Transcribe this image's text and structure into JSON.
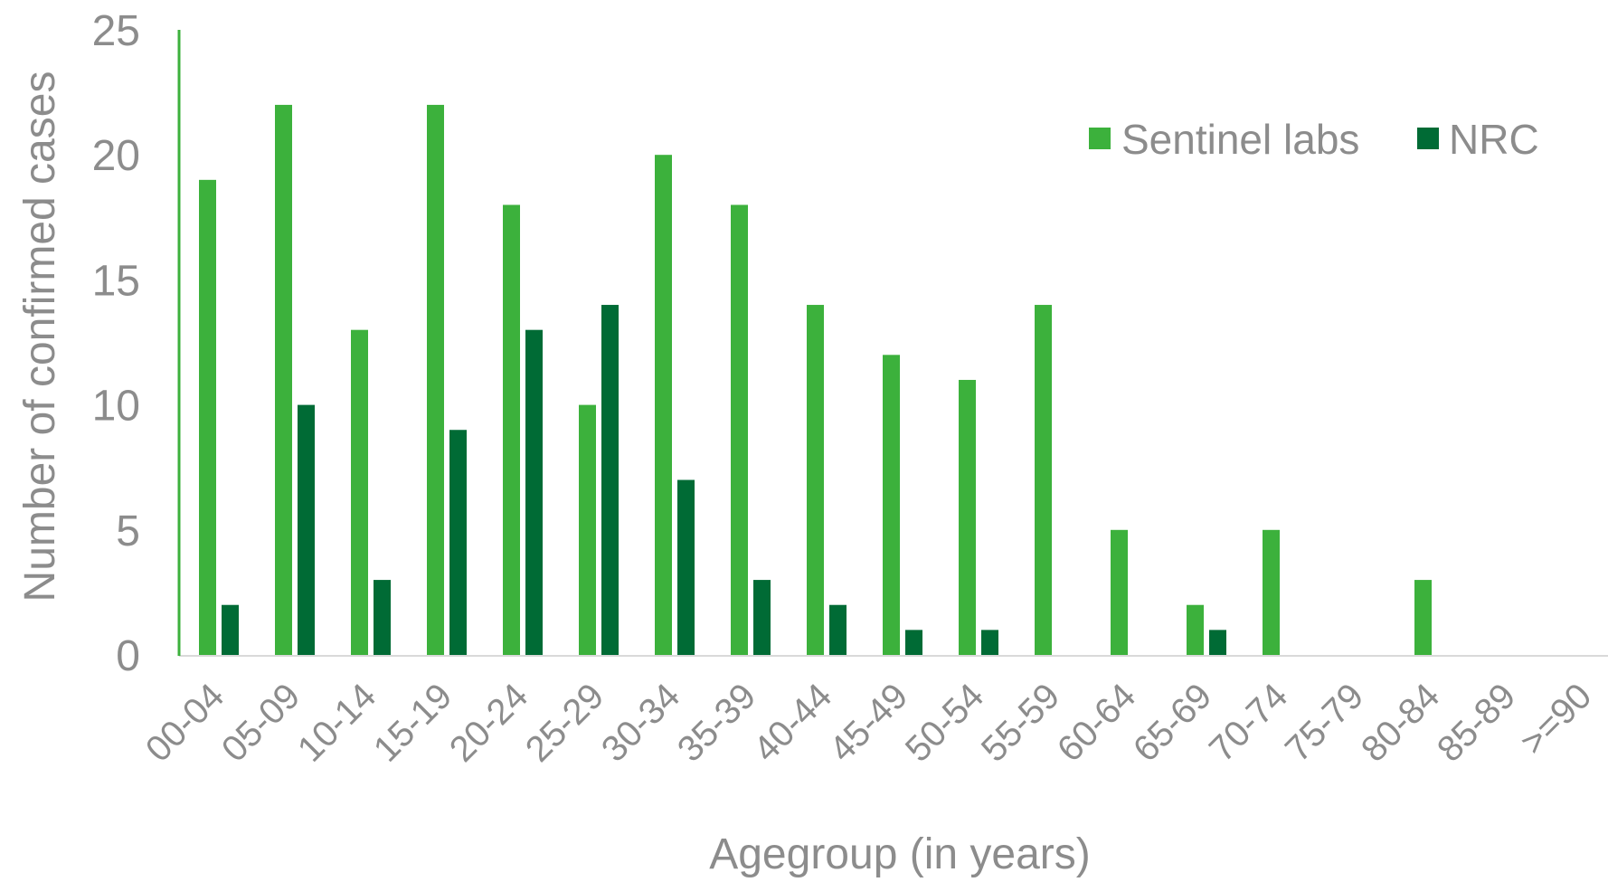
{
  "chart_data": {
    "type": "bar",
    "title": "",
    "xlabel": "Agegroup (in years)",
    "ylabel": "Number of confirmed cases",
    "ylim": [
      0,
      25
    ],
    "yticks": [
      "0",
      "5",
      "10",
      "15",
      "20",
      "25"
    ],
    "grid": false,
    "legend_position": "top-right",
    "categories": [
      "00-04",
      "05-09",
      "10-14",
      "15-19",
      "20-24",
      "25-29",
      "30-34",
      "35-39",
      "40-44",
      "45-49",
      "50-54",
      "55-59",
      "60-64",
      "65-69",
      "70-74",
      "75-79",
      "80-84",
      "85-89",
      ">=90"
    ],
    "series": [
      {
        "name": "Sentinel labs",
        "color": "#3cb13c",
        "values": [
          19,
          22,
          13,
          22,
          18,
          10,
          20,
          18,
          14,
          12,
          11,
          14,
          5,
          2,
          5,
          0,
          3,
          0,
          0
        ]
      },
      {
        "name": "NRC",
        "color": "#006b35",
        "values": [
          2,
          10,
          3,
          9,
          13,
          14,
          7,
          3,
          2,
          1,
          1,
          0,
          0,
          1,
          0,
          0,
          0,
          0,
          0
        ]
      }
    ],
    "colors": {
      "axis_text": "#8c8c8c",
      "axis_line": "#d9d9d9",
      "y_axis_line": "#3cb13c"
    }
  }
}
